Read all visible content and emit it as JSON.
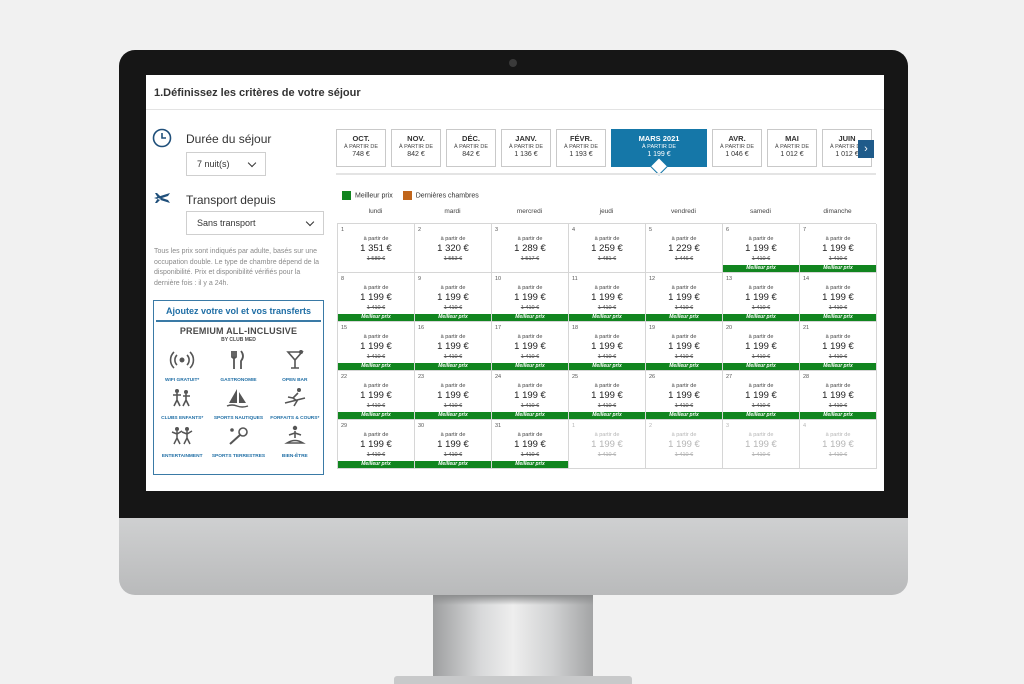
{
  "page": {
    "title": "1.Définissez les critères de votre séjour"
  },
  "stay": {
    "label": "Durée du séjour",
    "value": "7 nuit(s)"
  },
  "transport": {
    "label": "Transport depuis",
    "value": "Sans transport"
  },
  "notice": "Tous les prix sont indiqués par adulte, basés sur une occupation double. Le type de chambre dépend de la disponibilité. Prix et disponibilité vérifiés pour la dernière fois : il y a 24h.",
  "promo": {
    "title": "Ajoutez votre vol et vos transferts",
    "headline": "PREMIUM ALL-INCLUSIVE",
    "sub": "BY CLUB MED",
    "features": [
      {
        "label": "WIFI GRATUIT*",
        "icon": "wifi-icon"
      },
      {
        "label": "GASTRONOMIE",
        "icon": "cutlery-icon"
      },
      {
        "label": "OPEN BAR",
        "icon": "cocktail-icon"
      },
      {
        "label": "CLUBS ENFANTS*",
        "icon": "children-icon"
      },
      {
        "label": "SPORTS NAUTIQUES",
        "icon": "sailboat-icon"
      },
      {
        "label": "FORFAITS & COURS*",
        "icon": "skier-icon"
      },
      {
        "label": "ENTERTAINMENT",
        "icon": "dancers-icon"
      },
      {
        "label": "SPORTS TERRESTRES",
        "icon": "tennis-icon"
      },
      {
        "label": "BIEN-ÊTRE",
        "icon": "meditation-icon"
      }
    ]
  },
  "months": [
    {
      "name": "OCT.",
      "from": "À PARTIR DE",
      "price": "748 €"
    },
    {
      "name": "NOV.",
      "from": "À PARTIR DE",
      "price": "842 €"
    },
    {
      "name": "DÉC.",
      "from": "À PARTIR DE",
      "price": "842 €"
    },
    {
      "name": "JANV.",
      "from": "À PARTIR DE",
      "price": "1 136 €"
    },
    {
      "name": "FÉVR.",
      "from": "À PARTIR DE",
      "price": "1 193 €"
    },
    {
      "name": "MARS 2021",
      "from": "À PARTIR DE",
      "price": "1 199 €",
      "active": true
    },
    {
      "name": "AVR.",
      "from": "À PARTIR DE",
      "price": "1 046 €"
    },
    {
      "name": "MAI",
      "from": "À PARTIR DE",
      "price": "1 012 €"
    },
    {
      "name": "JUIN",
      "from": "À PARTIR DE",
      "price": "1 012 €"
    }
  ],
  "legend": {
    "best": "Meilleur prix",
    "last": "Dernières chambres"
  },
  "colors": {
    "best": "#11851f",
    "last": "#c0651b",
    "active_tab": "#1577a8",
    "nav": "#1f5b8a"
  },
  "weekdays": [
    "lundi",
    "mardi",
    "mercredi",
    "jeudi",
    "vendredi",
    "samedi",
    "dimanche"
  ],
  "calendar": {
    "from_label": "à partir de",
    "badge_label": "Meilleur prix",
    "days": [
      {
        "d": "1",
        "price": "1 351 €",
        "old": "1 589 €"
      },
      {
        "d": "2",
        "price": "1 320 €",
        "old": "1 553 €"
      },
      {
        "d": "3",
        "price": "1 289 €",
        "old": "1 517 €"
      },
      {
        "d": "4",
        "price": "1 259 €",
        "old": "1 481 €"
      },
      {
        "d": "5",
        "price": "1 229 €",
        "old": "1 446 €"
      },
      {
        "d": "6",
        "price": "1 199 €",
        "old": "1 410 €",
        "best": true
      },
      {
        "d": "7",
        "price": "1 199 €",
        "old": "1 410 €",
        "best": true
      },
      {
        "d": "8",
        "price": "1 199 €",
        "old": "1 410 €",
        "best": true
      },
      {
        "d": "9",
        "price": "1 199 €",
        "old": "1 410 €",
        "best": true
      },
      {
        "d": "10",
        "price": "1 199 €",
        "old": "1 410 €",
        "best": true
      },
      {
        "d": "11",
        "price": "1 199 €",
        "old": "1 410 €",
        "best": true
      },
      {
        "d": "12",
        "price": "1 199 €",
        "old": "1 410 €",
        "best": true
      },
      {
        "d": "13",
        "price": "1 199 €",
        "old": "1 410 €",
        "best": true
      },
      {
        "d": "14",
        "price": "1 199 €",
        "old": "1 410 €",
        "best": true
      },
      {
        "d": "15",
        "price": "1 199 €",
        "old": "1 410 €",
        "best": true
      },
      {
        "d": "16",
        "price": "1 199 €",
        "old": "1 410 €",
        "best": true
      },
      {
        "d": "17",
        "price": "1 199 €",
        "old": "1 410 €",
        "best": true
      },
      {
        "d": "18",
        "price": "1 199 €",
        "old": "1 410 €",
        "best": true
      },
      {
        "d": "19",
        "price": "1 199 €",
        "old": "1 410 €",
        "best": true
      },
      {
        "d": "20",
        "price": "1 199 €",
        "old": "1 410 €",
        "best": true
      },
      {
        "d": "21",
        "price": "1 199 €",
        "old": "1 410 €",
        "best": true
      },
      {
        "d": "22",
        "price": "1 199 €",
        "old": "1 410 €",
        "best": true
      },
      {
        "d": "23",
        "price": "1 199 €",
        "old": "1 410 €",
        "best": true
      },
      {
        "d": "24",
        "price": "1 199 €",
        "old": "1 410 €",
        "best": true
      },
      {
        "d": "25",
        "price": "1 199 €",
        "old": "1 410 €",
        "best": true
      },
      {
        "d": "26",
        "price": "1 199 €",
        "old": "1 410 €",
        "best": true
      },
      {
        "d": "27",
        "price": "1 199 €",
        "old": "1 410 €",
        "best": true
      },
      {
        "d": "28",
        "price": "1 199 €",
        "old": "1 410 €",
        "best": true
      },
      {
        "d": "29",
        "price": "1 199 €",
        "old": "1 410 €",
        "best": true
      },
      {
        "d": "30",
        "price": "1 199 €",
        "old": "1 410 €",
        "best": true
      },
      {
        "d": "31",
        "price": "1 199 €",
        "old": "1 410 €",
        "best": true
      },
      {
        "d": "1",
        "price": "1 199 €",
        "old": "1 410 €",
        "dim": true
      },
      {
        "d": "2",
        "price": "1 199 €",
        "old": "1 410 €",
        "dim": true
      },
      {
        "d": "3",
        "price": "1 199 €",
        "old": "1 410 €",
        "dim": true
      },
      {
        "d": "4",
        "price": "1 199 €",
        "old": "1 410 €",
        "dim": true
      }
    ]
  }
}
